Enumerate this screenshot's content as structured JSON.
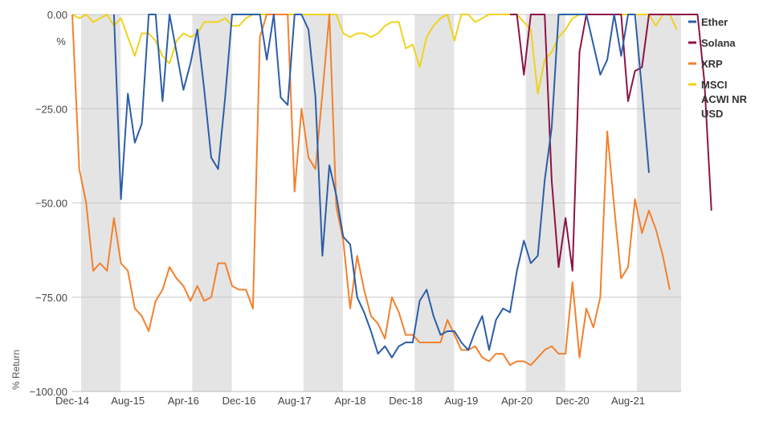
{
  "chart_data": {
    "type": "line",
    "title": "",
    "xlabel": "",
    "ylabel": "% Return",
    "ylim": [
      -100,
      0
    ],
    "y_ticks": [
      {
        "value": 0,
        "label": "0.00"
      },
      {
        "value": -25,
        "label": "−25.00"
      },
      {
        "value": -50,
        "label": "−50.00"
      },
      {
        "value": -75,
        "label": "−75.00"
      },
      {
        "value": -100,
        "label": "−100.00"
      }
    ],
    "y_unit_label": "%",
    "x_ticks": [
      "Dec-14",
      "Aug-15",
      "Apr-16",
      "Dec-16",
      "Aug-17",
      "Apr-18",
      "Dec-18",
      "Aug-19",
      "Apr-20",
      "Dec-20",
      "Aug-21"
    ],
    "x_start": "Dec-14",
    "x_step": "monthly",
    "grid": "horizontal",
    "shading": "alternating vertical bands",
    "legend_position": "right",
    "series": [
      {
        "name": "Ether",
        "color": "#2c5ea8",
        "start_index": 6,
        "values": [
          0,
          -49,
          -21,
          -34,
          -29,
          0,
          0,
          -23,
          0,
          -10,
          -20,
          -13,
          -4,
          -20,
          -38,
          -41,
          -22,
          0,
          0,
          0,
          0,
          0,
          -12,
          0,
          -22,
          -24,
          0,
          0,
          -4,
          -22,
          -64,
          -40,
          -48,
          -59,
          -61,
          -75,
          -79,
          -84,
          -90,
          -88,
          -91,
          -88,
          -87,
          -87,
          -76,
          -73,
          -80,
          -85,
          -84,
          -84,
          -87,
          -89,
          -84,
          -80,
          -89,
          -81,
          -78,
          -79,
          -68,
          -60,
          -66,
          -64,
          -44,
          -30,
          0,
          0,
          0,
          0,
          0,
          -8,
          -16,
          -12,
          0,
          -11,
          0,
          0,
          -20,
          -42
        ]
      },
      {
        "name": "Solana",
        "color": "#8c1445",
        "start_index": 63,
        "values": [
          0,
          0,
          -16,
          0,
          0,
          0,
          -44,
          -67,
          -54,
          -68,
          -10,
          0,
          0,
          0,
          0,
          0,
          0,
          -23,
          -15,
          -14,
          0,
          0,
          0,
          0,
          0,
          0,
          0,
          0,
          -18,
          -52
        ]
      },
      {
        "name": "XRP",
        "color": "#f2812e",
        "start_index": 0,
        "values": [
          0,
          -41,
          -50,
          -68,
          -66,
          -68,
          -54,
          -66,
          -68,
          -78,
          -80,
          -84,
          -76,
          -73,
          -67,
          -70,
          -72,
          -76,
          -72,
          -76,
          -75,
          -66,
          -66,
          -72,
          -73,
          -73,
          -78,
          -6,
          0,
          0,
          0,
          0,
          -47,
          -25,
          -38,
          -41,
          -21,
          0,
          -51,
          -60,
          -78,
          -64,
          -73,
          -80,
          -82,
          -86,
          -75,
          -79,
          -85,
          -85,
          -87,
          -87,
          -87,
          -87,
          -81,
          -85,
          -89,
          -89,
          -88,
          -91,
          -92,
          -90,
          -90,
          -93,
          -92,
          -92,
          -93,
          -91,
          -89,
          -88,
          -90,
          -90,
          -71,
          -91,
          -78,
          -83,
          -75,
          -31,
          -51,
          -70,
          -67,
          -49,
          -58,
          -52,
          -57,
          -64,
          -73
        ]
      },
      {
        "name": "MSCI ACWI NR USD",
        "color": "#f0d21e",
        "start_index": 0,
        "values": [
          0,
          -1,
          0,
          -2,
          -1,
          0,
          -3,
          -1,
          -6,
          -11,
          -5,
          -5,
          -7,
          -11,
          -13,
          -7,
          -5,
          -6,
          -5,
          -2,
          -2,
          -2,
          -1,
          -3,
          -3,
          -1,
          0,
          0,
          0,
          0,
          0,
          0,
          0,
          0,
          0,
          0,
          0,
          0,
          0,
          -5,
          -6,
          -5,
          -5,
          -6,
          -5,
          -3,
          -2,
          -2,
          -9,
          -8,
          -14,
          -6,
          -3,
          -1,
          0,
          -7,
          0,
          0,
          -2,
          -1,
          0,
          0,
          0,
          0,
          0,
          -2,
          -4,
          -21,
          -12,
          -10,
          -6,
          -4,
          -1,
          0,
          0,
          0,
          0,
          0,
          0,
          0,
          0,
          0,
          0,
          0,
          -3,
          0,
          0,
          -4
        ]
      }
    ]
  }
}
